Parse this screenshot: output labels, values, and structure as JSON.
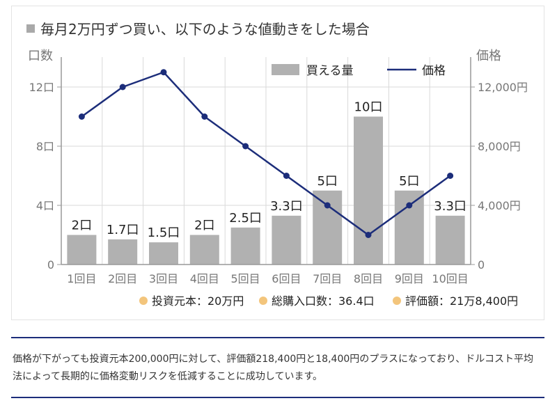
{
  "colors": {
    "bar": "#b1b1b1",
    "line": "#1c2d7a",
    "grid": "#d9d9d9",
    "axis": "#999999",
    "legend_dot": "#f3c57c",
    "rule": "#1c2d7a"
  },
  "chart_data": {
    "type": "bar+line",
    "title": "毎月2万円ずつ買い、以下のような値動きをした場合",
    "categories": [
      "1回目",
      "2回目",
      "3回目",
      "4回目",
      "5回目",
      "6回目",
      "7回目",
      "8回目",
      "9回目",
      "10回目"
    ],
    "left_axis": {
      "label": "口数",
      "ylim": [
        0,
        14
      ],
      "ticks": [
        0,
        4,
        8,
        12
      ],
      "tick_labels": [
        "0",
        "4口",
        "8口",
        "12口"
      ]
    },
    "right_axis": {
      "label": "価格",
      "ylim": [
        0,
        14000
      ],
      "ticks": [
        0,
        4000,
        8000,
        12000
      ],
      "tick_labels": [
        "0",
        "4,000円",
        "8,000円",
        "12,000円"
      ]
    },
    "series": [
      {
        "name": "買える量",
        "type": "bar",
        "axis": "left",
        "values": [
          2,
          1.7,
          1.5,
          2,
          2.5,
          3.3,
          5,
          10,
          5,
          3.3
        ],
        "data_labels": [
          "2口",
          "1.7口",
          "1.5口",
          "2口",
          "2.5口",
          "3.3口",
          "5口",
          "10口",
          "5口",
          "3.3口"
        ]
      },
      {
        "name": "価格",
        "type": "line",
        "axis": "right",
        "values": [
          10000,
          12000,
          13000,
          10000,
          8000,
          6000,
          4000,
          2000,
          4000,
          6000
        ]
      }
    ],
    "summary": [
      {
        "label": "投資元本：20万円"
      },
      {
        "label": "総購入口数：36.4口"
      },
      {
        "label": "評価額：21万8,400円"
      }
    ]
  },
  "caption_text": "価格が下がっても投資元本200,000円に対して、評価額218,400円と18,400円のプラスになっており、ドルコスト平均法によって長期的に価格変動リスクを低減することに成功しています。"
}
